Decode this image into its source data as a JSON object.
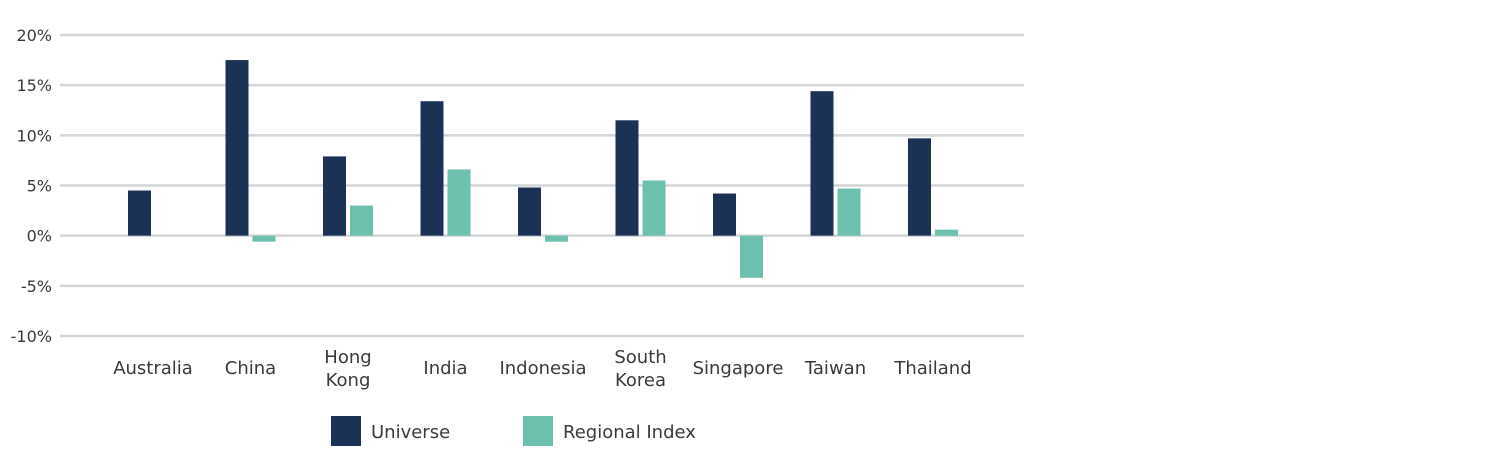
{
  "chart_data": {
    "type": "bar",
    "categories": [
      [
        "Australia"
      ],
      [
        "China"
      ],
      [
        "Hong",
        "Kong"
      ],
      [
        "India"
      ],
      [
        "Indonesia"
      ],
      [
        "South",
        "Korea"
      ],
      [
        "Singapore"
      ],
      [
        "Taiwan"
      ],
      [
        "Thailand"
      ]
    ],
    "series": [
      {
        "name": "Universe",
        "color": "#1b3256",
        "values": [
          4.5,
          17.5,
          7.9,
          13.4,
          4.8,
          11.5,
          4.2,
          14.4,
          9.7
        ]
      },
      {
        "name": "Regional Index",
        "color": "#6dbfae",
        "values": [
          0,
          -0.6,
          3.0,
          6.6,
          -0.6,
          5.5,
          -4.2,
          4.7,
          0.6
        ]
      }
    ],
    "yticks": [
      20,
      15,
      10,
      5,
      0,
      -5,
      -10
    ],
    "ytick_labels": [
      "20%",
      "15%",
      "10%",
      "5%",
      "0%",
      "-5%",
      "-10%"
    ],
    "ylim": [
      -10,
      20
    ],
    "grid": true,
    "legend_position": "bottom-center",
    "title": "",
    "xlabel": "",
    "ylabel": ""
  }
}
